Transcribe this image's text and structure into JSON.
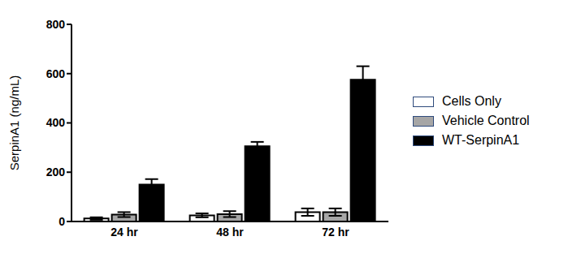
{
  "chart_data": {
    "type": "bar",
    "y_label": "SerpinA1 (ng/mL)",
    "categories": [
      "24 hr",
      "48 hr",
      "72 hr"
    ],
    "series": [
      {
        "name": "Cells Only",
        "color": "#ffffff",
        "values": [
          12,
          25,
          38
        ],
        "errors": [
          5,
          8,
          15
        ]
      },
      {
        "name": "Vehicle Control",
        "color": "#a6a6a6",
        "values": [
          28,
          30,
          38
        ],
        "errors": [
          10,
          12,
          15
        ]
      },
      {
        "name": "WT-SerpinA1",
        "color": "#000000",
        "values": [
          150,
          305,
          575
        ],
        "errors": [
          22,
          18,
          55
        ]
      }
    ],
    "ylim": [
      0,
      800
    ],
    "yticks": [
      0,
      200,
      400,
      600,
      800
    ],
    "grid": false,
    "legend": "right"
  }
}
